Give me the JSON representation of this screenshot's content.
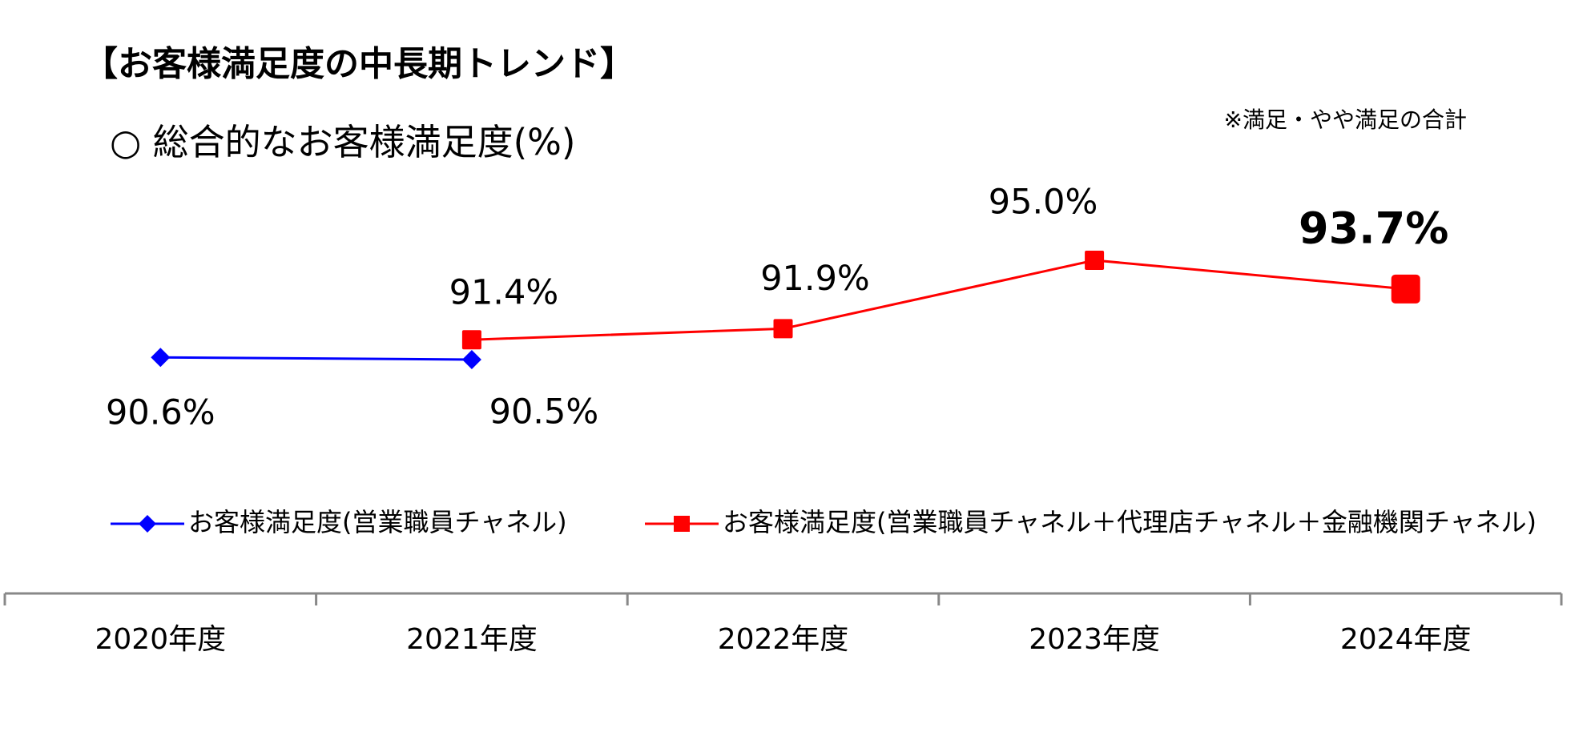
{
  "chart_data": {
    "type": "line",
    "title": "【お客様満足度の中長期トレンド】",
    "subtitle": "○ 総合的なお客様満足度(%)",
    "note": "※満足・やや満足の合計",
    "categories": [
      "2020年度",
      "2021年度",
      "2022年度",
      "2023年度",
      "2024年度"
    ],
    "series": [
      {
        "name": "お客様満足度(営業職員チャネル)",
        "color": "#0000ff",
        "marker": "diamond",
        "values": [
          90.6,
          90.5,
          null,
          null,
          null
        ],
        "value_labels": [
          "90.6%",
          "90.5%",
          null,
          null,
          null
        ]
      },
      {
        "name": "お客様満足度(営業職員チャネル＋代理店チャネル＋金融機関チャネル)",
        "color": "#ff0000",
        "marker": "square",
        "values": [
          null,
          91.4,
          91.9,
          95.0,
          93.7
        ],
        "value_labels": [
          null,
          "91.4%",
          "91.9%",
          "95.0%",
          "93.7%"
        ]
      }
    ]
  }
}
